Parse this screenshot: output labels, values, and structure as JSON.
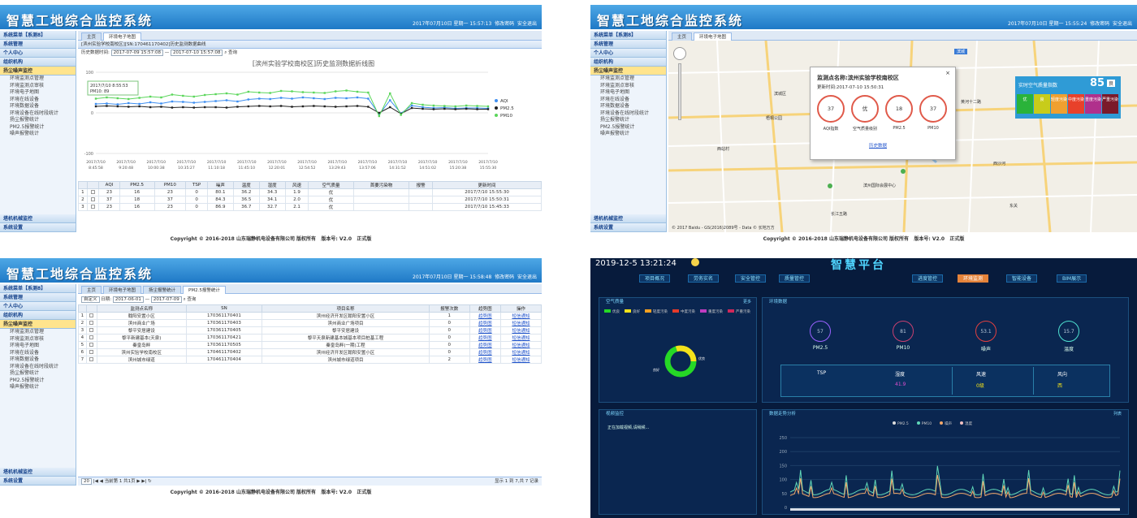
{
  "app": {
    "title": "智慧工地综合监控系统",
    "copyright": "Copyright © 2016-2018 山东瑞静机电设备有限公司 版权所有",
    "version": "版本号: V2.0",
    "edition": "正式版"
  },
  "p1": {
    "datetime": "2017年07月10日 星期一 15:57:13",
    "changepwd": "修改密码",
    "logout": "安全退出"
  },
  "p2": {
    "datetime": "2017年07月10日 星期一 15:55:24",
    "changepwd": "修改密码",
    "logout": "安全退出"
  },
  "p3": {
    "datetime": "2017年07月10日 星期一 15:58:48",
    "changepwd": "修改密码",
    "logout": "安全退出"
  },
  "sidebar": {
    "menu": "系统菜单【系测8】",
    "sys": "系统管理",
    "personal": "个人中心",
    "org": "组织机构",
    "dust": "扬尘噪声监控",
    "dust_items": [
      "环境监测点管理",
      "环境监测点审核",
      "环境电子地图",
      "环境在线设备",
      "环境数据设备",
      "环境设备在线时段统计",
      "扬尘报警统计",
      "PM2.5报警统计",
      "噪声报警统计"
    ],
    "tower": "塔机机械监控",
    "settings": "系统设置"
  },
  "p1tabs": [
    "主页",
    "环境电子地图"
  ],
  "p1bar": "[滨州实验学校南校区][SN:170461170402]历史监测数据曲线",
  "p1tool": {
    "label": "历史数据时间:",
    "from": "2017-07-09 15:57:08",
    "to": "2017-07-10 15:57:08",
    "btn": "查询"
  },
  "chart_data": {
    "type": "line",
    "title": "[滨州实验学校南校区]历史监测数据折线图",
    "ylim": [
      -100,
      100
    ],
    "yticks": [
      "100",
      "0",
      "-100"
    ],
    "tooltip": [
      "2017/7/10 8:55:53",
      "PM10: 89"
    ],
    "xticks": [
      "2017/7/10 8:45:58",
      "2017/7/10 9:20:48",
      "2017/7/10 10:00:38",
      "2017/7/10 10:35:27",
      "2017/7/10 11:10:18",
      "2017/7/10 11:45:10",
      "2017/7/10 12:20:01",
      "2017/7/10 12:54:52",
      "2017/7/10 13:29:43",
      "2017/7/10 13:57:06",
      "2017/7/10 14:31:52",
      "2017/7/10 14:51:02",
      "2017/7/10 15:20:38",
      "2017/7/10 15:55:30"
    ],
    "series": [
      {
        "name": "AQI",
        "color": "#3e8ef0",
        "values": [
          22,
          23,
          21,
          24,
          22,
          26,
          23,
          28,
          27,
          25,
          27,
          29,
          31,
          28,
          33,
          35,
          34,
          37,
          35,
          38,
          36,
          34,
          37,
          36,
          38,
          35,
          -4,
          31,
          -1,
          18,
          14,
          12,
          13,
          11,
          12,
          12,
          11
        ]
      },
      {
        "name": "PM2.5",
        "color": "#222222",
        "values": [
          16,
          17,
          16,
          15,
          16,
          14,
          15,
          13,
          14,
          13,
          14,
          14,
          13,
          15,
          16,
          17,
          16,
          17,
          15,
          16,
          17,
          16,
          15,
          16,
          17,
          15,
          0,
          14,
          -2,
          12,
          10,
          9,
          10,
          9,
          10,
          9,
          9
        ]
      },
      {
        "name": "PM10",
        "color": "#5bd65b",
        "values": [
          35,
          38,
          36,
          34,
          37,
          40,
          38,
          45,
          42,
          40,
          44,
          46,
          48,
          45,
          52,
          50,
          49,
          54,
          53,
          51,
          50,
          49,
          53,
          55,
          52,
          50,
          -8,
          48,
          -5,
          24,
          20,
          18,
          17,
          16,
          18,
          17,
          16
        ]
      }
    ]
  },
  "p1grid": {
    "headers": [
      "",
      "",
      "AQI",
      "PM2.5",
      "PM10",
      "TSP",
      "噪声",
      "温度",
      "湿度",
      "风速",
      "空气质量",
      "首要污染物",
      "报警",
      "更新时间"
    ],
    "rows": [
      [
        "1",
        "",
        "23",
        "16",
        "23",
        "0",
        "80.1",
        "36.2",
        "34.3",
        "1.9",
        "优",
        "",
        "",
        "2017/7/10 15:55:30"
      ],
      [
        "2",
        "",
        "37",
        "18",
        "37",
        "0",
        "84.3",
        "36.5",
        "34.1",
        "2.0",
        "优",
        "",
        "",
        "2017/7/10 15:50:31"
      ],
      [
        "3",
        "",
        "23",
        "16",
        "23",
        "0",
        "86.9",
        "36.7",
        "32.7",
        "2.1",
        "优",
        "",
        "",
        "2017/7/10 15:45:33"
      ]
    ]
  },
  "p2tabs": [
    "主页",
    "环境电子地图"
  ],
  "popup": {
    "title": "监测点名称:滨州实验学校南校区",
    "time": "更新时间:2017-07-10 15:50:31",
    "values": [
      "37",
      "优",
      "18",
      "37"
    ],
    "labels": [
      "AQI指数",
      "空气质量级别",
      "PM2.5",
      "PM10"
    ],
    "link": "历史数据"
  },
  "aqi": {
    "label": "实时空气质量指数",
    "value": "85",
    "grade": "良",
    "levels": [
      "优",
      "良",
      "轻度污染",
      "中度污染",
      "重度污染",
      "严重污染"
    ],
    "colors": [
      "#2ab33a",
      "#c8cc1a",
      "#f0a030",
      "#e8412a",
      "#b0308c",
      "#7a1a2a"
    ]
  },
  "map": {
    "places": [
      "滨城区",
      "梧桐公园",
      "西站村",
      "滨州",
      "黄河十二路",
      "渤海十八路",
      "西沙河",
      "滨州实验学校",
      "滨州国际会展中心",
      "东关",
      "新立河西路",
      "长江五路"
    ],
    "credit": "© 2017 Baidu - GS(2016)2089号 - Data © 长地万方",
    "type": "滨城"
  },
  "p3tabs": [
    "主页",
    "环境电子地图",
    "扬尘报警统计",
    "PM2.5报警统计"
  ],
  "p3tool": {
    "select": "自定义",
    "dateLabel": "日期:",
    "from": "2017-06-01",
    "to": "2017-07-09",
    "btn": "查询"
  },
  "p3grid": {
    "headers": [
      "",
      "",
      "监测点名称",
      "SN",
      "项目名称",
      "报警次数",
      "趋势图",
      "操作"
    ],
    "rows": [
      [
        "1",
        "",
        "翰阳安置小区",
        "170361170401",
        "滨州经济开发区翰阳安置小区",
        "1",
        "趋势图",
        "短信通知"
      ],
      [
        "2",
        "",
        "滨州商业广场",
        "170361170403",
        "滨州商业广场项目",
        "0",
        "趋势图",
        "短信通知"
      ],
      [
        "3",
        "",
        "黎平安居建设",
        "170361170405",
        "黎平安居建设",
        "0",
        "趋势图",
        "短信通知"
      ],
      [
        "4",
        "",
        "黎平新建基本(天泉)",
        "170361170421",
        "黎平天泉新建基本城基本项目桩基工程",
        "0",
        "趋势图",
        "短信通知"
      ],
      [
        "5",
        "",
        "秦皇岛畔",
        "170361170505",
        "秦皇岛畔(一期)工程",
        "0",
        "趋势图",
        "短信通知"
      ],
      [
        "6",
        "",
        "滨州实验学校南校区",
        "170461170402",
        "滨州经济开发区翰阳安置小区",
        "0",
        "趋势图",
        "短信通知"
      ],
      [
        "7",
        "",
        "滨州城市绿道",
        "170461170404",
        "滨州城市绿道项目",
        "2",
        "趋势图",
        "短信通知"
      ]
    ]
  },
  "p3pager": {
    "size": "20",
    "page": "当前第 1",
    "of": "共1页",
    "info": "显示 1 到 7,共 7 记录"
  },
  "p4": {
    "datetime": "2019-12-5 13:21:24",
    "title": "智慧平台",
    "nav": [
      "项目概况",
      "劳务实名",
      "安全管控",
      "质量管控",
      "进度管控",
      "环境监测",
      "智能设备",
      "BIM展示"
    ],
    "air": "空气质量",
    "env": "环境数据",
    "video": "视频监控",
    "trend": "数据走势分析",
    "list": "列表",
    "more": "更多",
    "legend": [
      "优良",
      "良好",
      "轻度污染",
      "中度污染",
      "重度污染",
      "严重污染"
    ],
    "legendColors": [
      "#26d826",
      "#f4e21a",
      "#f4a020",
      "#e53a2a",
      "#c03cc0",
      "#d0285a"
    ],
    "donut": {
      "good": "优良",
      "yellow": "良好"
    },
    "rings": [
      {
        "v": "57",
        "l": "PM2.5",
        "c": "#9a62ff"
      },
      {
        "v": "81",
        "l": "PM10",
        "c": "#c84070"
      },
      {
        "v": "53.1",
        "l": "噪声",
        "c": "#e04040"
      },
      {
        "v": "15.7",
        "l": "温度",
        "c": "#4ee0d0"
      }
    ],
    "tsp": {
      "label": "TSP",
      "cols": [
        {
          "k": "湿度",
          "v": "41.9"
        },
        {
          "k": "风速",
          "v": "0级"
        },
        {
          "k": "风向",
          "v": "西"
        }
      ]
    },
    "videoText": "正在加载视频,请稍候...",
    "trendLegend": [
      "PM2.5",
      "PM10",
      "噪声",
      "温度"
    ],
    "trendTicks": [
      "250",
      "200",
      "150",
      "100",
      "50",
      "0"
    ]
  }
}
